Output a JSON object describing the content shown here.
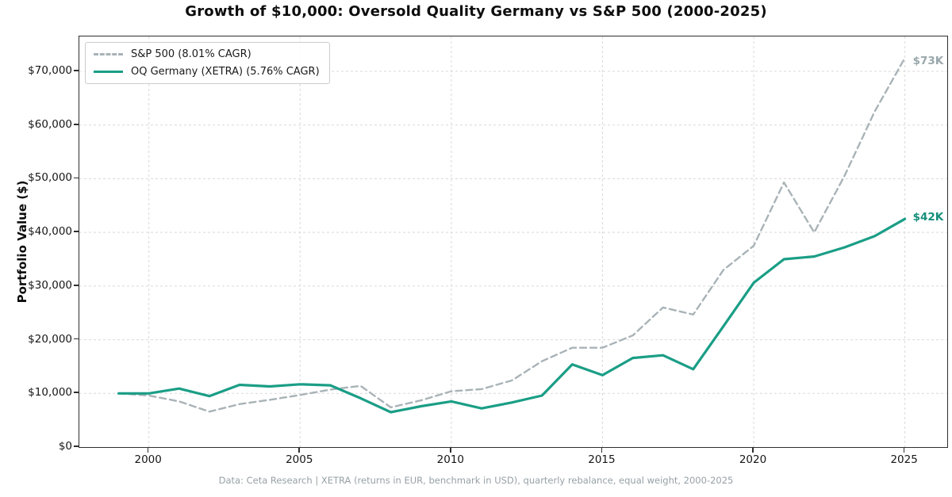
{
  "title": "Growth of $10,000: Oversold Quality Germany vs S&P 500 (2000-2025)",
  "ylabel": "Portfolio Value ($)",
  "caption": "Data: Ceta Research | XETRA (returns in EUR, benchmark in USD), quarterly rebalance, equal weight, 2000-2025",
  "colors": {
    "benchmark_line": "#a9b3b7",
    "strategy_line": "#1a9e86",
    "benchmark_label": "#9aa7ab",
    "strategy_label": "#148f7b",
    "grid": "#d9d9d9",
    "spine": "#2e2e2e"
  },
  "legend": {
    "items": [
      {
        "label": "S&P 500 (8.01% CAGR)",
        "style": "dashed"
      },
      {
        "label": "OQ Germany (XETRA) (5.76% CAGR)",
        "style": "solid"
      }
    ]
  },
  "end_labels": {
    "benchmark": "$73K",
    "strategy": "$42K"
  },
  "chart_data": {
    "type": "line",
    "title": "Growth of $10,000: Oversold Quality Germany vs S&P 500 (2000-2025)",
    "xlabel": "",
    "ylabel": "Portfolio Value ($)",
    "x": [
      1999,
      2000,
      2001,
      2002,
      2003,
      2004,
      2005,
      2006,
      2007,
      2008,
      2009,
      2010,
      2011,
      2012,
      2013,
      2014,
      2015,
      2016,
      2017,
      2018,
      2019,
      2020,
      2021,
      2022,
      2023,
      2024,
      2025
    ],
    "series": [
      {
        "name": "S&P 500 (8.01% CAGR)",
        "style": "dashed",
        "color": "#a9b3b7",
        "values": [
          10000,
          9600,
          8500,
          6600,
          8000,
          8800,
          9700,
          10700,
          11400,
          7400,
          8700,
          10400,
          10800,
          12400,
          16000,
          18500,
          18500,
          20800,
          26000,
          24700,
          33000,
          37500,
          49300,
          40000,
          50500,
          62500,
          72500
        ]
      },
      {
        "name": "OQ Germany (XETRA) (5.76% CAGR)",
        "style": "solid",
        "color": "#1a9e86",
        "values": [
          10000,
          10000,
          10900,
          9500,
          11600,
          11300,
          11700,
          11500,
          9100,
          6500,
          7600,
          8500,
          7200,
          8300,
          9600,
          15400,
          13400,
          16600,
          17100,
          14500,
          22500,
          30600,
          35000,
          35500,
          37200,
          39300,
          42500
        ]
      }
    ],
    "xlim": [
      1997.7,
      2026.4
    ],
    "ylim": [
      0,
      76500
    ],
    "x_ticks": [
      2000,
      2005,
      2010,
      2015,
      2020,
      2025
    ],
    "y_ticks": [
      {
        "value": 0,
        "label": "$0"
      },
      {
        "value": 10000,
        "label": "$10,000"
      },
      {
        "value": 20000,
        "label": "$20,000"
      },
      {
        "value": 30000,
        "label": "$30,000"
      },
      {
        "value": 40000,
        "label": "$40,000"
      },
      {
        "value": 50000,
        "label": "$50,000"
      },
      {
        "value": 60000,
        "label": "$60,000"
      },
      {
        "value": 70000,
        "label": "$70,000"
      }
    ],
    "grid": "dashed, both axes",
    "legend_position": "upper left"
  }
}
